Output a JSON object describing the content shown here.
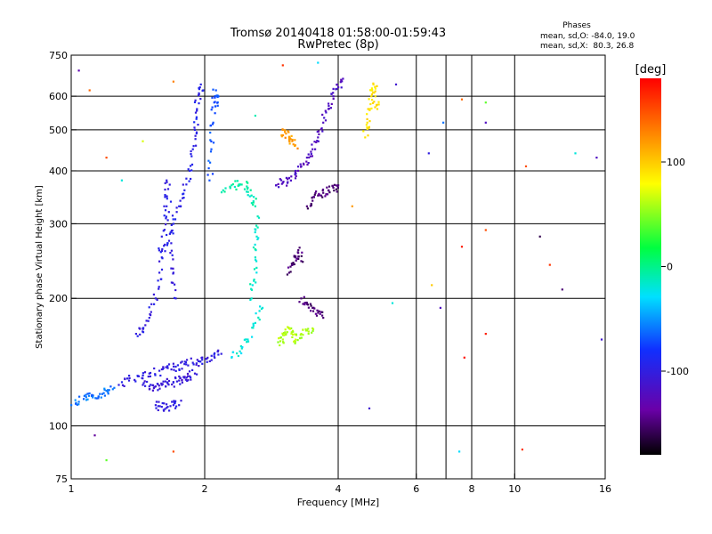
{
  "chart_data": {
    "type": "scatter",
    "title": "Tromsø 20140418 01:58:00-01:59:43",
    "subtitle": "RwPretec (8p)",
    "stats_header": "Phases",
    "stats_line_o": "mean, sd,O: -84.0, 19.0",
    "stats_line_x": "mean, sd,X:  80.3, 26.8",
    "xlabel": "Frequency [MHz]",
    "ylabel": "Stationary phase Virtual Height [km]",
    "x_scale": "log",
    "y_scale": "log",
    "xlim": [
      1,
      16
    ],
    "ylim": [
      75,
      750
    ],
    "x_ticks": [
      1,
      2,
      4,
      6,
      8,
      10,
      16
    ],
    "x_tick_labels": [
      "1",
      "2",
      "4",
      "6",
      "8",
      "10",
      "16"
    ],
    "y_ticks": [
      75,
      100,
      200,
      300,
      400,
      500,
      600,
      750
    ],
    "y_tick_labels": [
      "75",
      "100",
      "200",
      "300",
      "400",
      "500",
      "600",
      "750"
    ],
    "grid_x": [
      2,
      4,
      6,
      7,
      8,
      10
    ],
    "grid_y": [
      100,
      200,
      300,
      400,
      500,
      600
    ],
    "colorbar": {
      "label": "[deg]",
      "min": -180,
      "max": 180,
      "ticks": [
        100,
        0,
        -100
      ],
      "tick_labels": [
        "100",
        "0",
        "-100"
      ]
    },
    "traces": [
      {
        "x": [
          1.0,
          1.04,
          1.08,
          1.12,
          1.16,
          1.2,
          1.25
        ],
        "y": [
          112,
          114,
          117,
          118,
          119,
          121,
          123
        ],
        "phase": -60
      },
      {
        "x": [
          1.28,
          1.35,
          1.42,
          1.5,
          1.58,
          1.65,
          1.72,
          1.8,
          1.88,
          1.95,
          2.02,
          2.1,
          2.18
        ],
        "y": [
          125,
          128,
          131,
          133,
          135,
          137,
          138,
          140,
          141,
          142,
          144,
          146,
          148
        ],
        "phase": -100
      },
      {
        "x": [
          1.45,
          1.5,
          1.55,
          1.6,
          1.65,
          1.7,
          1.75,
          1.8,
          1.85,
          1.9
        ],
        "y": [
          125,
          124,
          124,
          125,
          126,
          127,
          128,
          130,
          131,
          133
        ],
        "phase": -105
      },
      {
        "x": [
          1.4,
          1.45,
          1.5,
          1.55,
          1.58,
          1.6,
          1.62,
          1.64,
          1.66,
          1.68,
          1.7,
          1.72
        ],
        "y": [
          165,
          170,
          180,
          200,
          230,
          280,
          330,
          380,
          320,
          270,
          230,
          200
        ],
        "phase": -100
      },
      {
        "x": [
          1.6,
          1.65,
          1.7,
          1.75,
          1.8,
          1.85,
          1.88,
          1.9,
          1.92,
          1.94,
          1.96
        ],
        "y": [
          250,
          270,
          300,
          330,
          360,
          400,
          450,
          500,
          560,
          610,
          640
        ],
        "phase": -95
      },
      {
        "x": [
          2.05,
          2.07,
          2.09,
          2.1,
          2.12,
          2.14
        ],
        "y": [
          380,
          450,
          520,
          580,
          620,
          570
        ],
        "phase": -70
      },
      {
        "x": [
          1.55,
          1.6,
          1.65,
          1.7,
          1.75
        ],
        "y": [
          112,
          111,
          111,
          112,
          112
        ],
        "phase": -100
      },
      {
        "x": [
          2.2,
          2.3,
          2.4,
          2.5,
          2.55,
          2.6
        ],
        "y": [
          360,
          370,
          372,
          365,
          350,
          330
        ],
        "phase": -10
      },
      {
        "x": [
          2.3,
          2.4,
          2.5,
          2.6,
          2.7
        ],
        "y": [
          145,
          150,
          160,
          175,
          190
        ],
        "phase": -20
      },
      {
        "x": [
          2.55,
          2.58,
          2.6,
          2.62,
          2.65
        ],
        "y": [
          200,
          220,
          250,
          280,
          310
        ],
        "phase": -15
      },
      {
        "x": [
          2.9,
          3.0,
          3.1,
          3.2,
          3.3,
          3.4,
          3.5,
          3.6,
          3.7,
          3.8,
          3.9,
          4.0,
          4.1
        ],
        "y": [
          370,
          375,
          385,
          395,
          410,
          430,
          450,
          480,
          520,
          560,
          600,
          630,
          660
        ],
        "phase": -120
      },
      {
        "x": [
          3.4,
          3.5,
          3.6,
          3.7,
          3.8,
          3.9,
          4.0
        ],
        "y": [
          330,
          340,
          350,
          355,
          360,
          365,
          370
        ],
        "phase": -150
      },
      {
        "x": [
          3.1,
          3.15,
          3.2,
          3.25,
          3.3
        ],
        "y": [
          230,
          240,
          250,
          260,
          245
        ],
        "phase": -150
      },
      {
        "x": [
          3.3,
          3.4,
          3.5,
          3.6,
          3.7
        ],
        "y": [
          200,
          195,
          190,
          185,
          180
        ],
        "phase": -150
      },
      {
        "x": [
          2.95,
          3.0,
          3.05,
          3.1,
          3.15,
          3.2,
          3.3,
          3.4,
          3.5
        ],
        "y": [
          155,
          160,
          165,
          170,
          162,
          158,
          165,
          168,
          170
        ],
        "phase": 60
      },
      {
        "x": [
          4.6,
          4.65,
          4.7,
          4.75,
          4.8,
          4.85,
          4.9
        ],
        "y": [
          480,
          520,
          560,
          600,
          640,
          600,
          560
        ],
        "phase": 90
      },
      {
        "x": [
          3.0,
          3.05,
          3.1,
          3.15,
          3.2
        ],
        "y": [
          500,
          490,
          480,
          470,
          460
        ],
        "phase": 120
      }
    ],
    "scatter_points": [
      {
        "x": 1.04,
        "y": 690,
        "phase": -130
      },
      {
        "x": 1.1,
        "y": 620,
        "phase": 140
      },
      {
        "x": 1.2,
        "y": 430,
        "phase": 150
      },
      {
        "x": 1.3,
        "y": 380,
        "phase": -20
      },
      {
        "x": 1.45,
        "y": 470,
        "phase": 70
      },
      {
        "x": 1.7,
        "y": 650,
        "phase": 130
      },
      {
        "x": 2.6,
        "y": 540,
        "phase": -10
      },
      {
        "x": 3.0,
        "y": 710,
        "phase": 160
      },
      {
        "x": 3.6,
        "y": 720,
        "phase": -30
      },
      {
        "x": 4.3,
        "y": 330,
        "phase": 120
      },
      {
        "x": 5.4,
        "y": 640,
        "phase": -110
      },
      {
        "x": 6.4,
        "y": 440,
        "phase": -100
      },
      {
        "x": 6.9,
        "y": 520,
        "phase": -60
      },
      {
        "x": 7.6,
        "y": 590,
        "phase": 140
      },
      {
        "x": 8.6,
        "y": 580,
        "phase": 40
      },
      {
        "x": 8.6,
        "y": 520,
        "phase": -120
      },
      {
        "x": 10.6,
        "y": 410,
        "phase": 150
      },
      {
        "x": 12.0,
        "y": 240,
        "phase": 160
      },
      {
        "x": 15.3,
        "y": 430,
        "phase": -120
      },
      {
        "x": 7.6,
        "y": 265,
        "phase": 170
      },
      {
        "x": 8.6,
        "y": 290,
        "phase": 150
      },
      {
        "x": 5.3,
        "y": 195,
        "phase": -20
      },
      {
        "x": 6.8,
        "y": 190,
        "phase": -120
      },
      {
        "x": 6.5,
        "y": 215,
        "phase": 100
      },
      {
        "x": 8.6,
        "y": 165,
        "phase": 170
      },
      {
        "x": 7.7,
        "y": 145,
        "phase": 175
      },
      {
        "x": 4.7,
        "y": 110,
        "phase": -110
      },
      {
        "x": 1.13,
        "y": 95,
        "phase": -140
      },
      {
        "x": 1.2,
        "y": 83,
        "phase": 40
      },
      {
        "x": 1.7,
        "y": 87,
        "phase": 150
      },
      {
        "x": 7.5,
        "y": 87,
        "phase": -30
      },
      {
        "x": 10.4,
        "y": 88,
        "phase": 160
      },
      {
        "x": 15.7,
        "y": 160,
        "phase": -110
      },
      {
        "x": 11.4,
        "y": 280,
        "phase": -160
      },
      {
        "x": 12.8,
        "y": 210,
        "phase": -150
      },
      {
        "x": 13.7,
        "y": 440,
        "phase": -20
      }
    ]
  }
}
